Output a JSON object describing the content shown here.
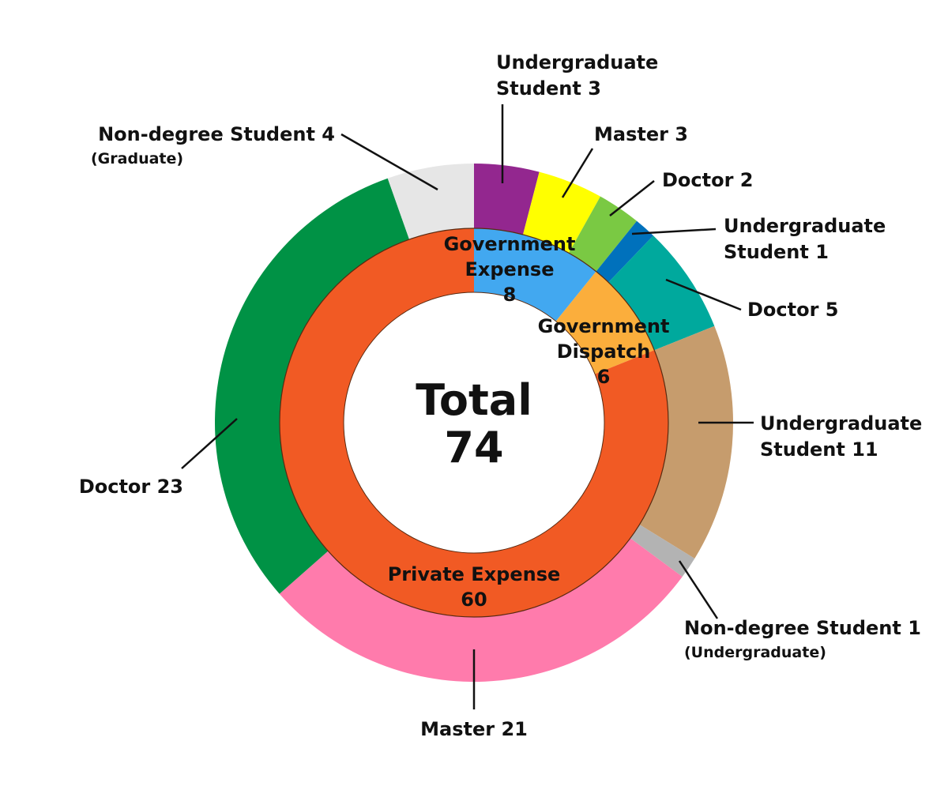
{
  "chart_data": {
    "type": "pie",
    "center_label": {
      "line1": "Total",
      "line2": "74"
    },
    "inner_ring": [
      {
        "label": [
          "Government",
          "Expense"
        ],
        "value": 8,
        "value_text": "8",
        "color": "#42a8f0"
      },
      {
        "label": [
          "Government",
          "Dispatch"
        ],
        "value": 6,
        "value_text": "6",
        "color": "#fbae3c"
      },
      {
        "label": [
          "Private Expense"
        ],
        "value": 60,
        "value_text": "60",
        "color": "#f15a24"
      }
    ],
    "outer_ring": [
      {
        "label": [
          "Undergraduate",
          "Student 3"
        ],
        "value": 3,
        "color": "#93278f"
      },
      {
        "label": [
          "Master 3"
        ],
        "value": 3,
        "color": "#ffff00"
      },
      {
        "label": [
          "Doctor 2"
        ],
        "value": 2,
        "color": "#7ac943"
      },
      {
        "label": [
          "Undergraduate",
          "Student 1"
        ],
        "value": 1,
        "color": "#0071bc"
      },
      {
        "label": [
          "Doctor 5"
        ],
        "value": 5,
        "color": "#00a99d"
      },
      {
        "label": [
          "Undergraduate",
          "Student 11"
        ],
        "value": 11,
        "color": "#c69c6d"
      },
      {
        "label": [
          "Non-degree Student 1"
        ],
        "sublabel": "(Undergraduate)",
        "value": 1,
        "color": "#b3b3b3"
      },
      {
        "label": [
          "Master 21"
        ],
        "value": 21,
        "color": "#ff7bac"
      },
      {
        "label": [
          "Doctor 23"
        ],
        "value": 23,
        "color": "#009245"
      },
      {
        "label": [
          "Non-degree Student 4"
        ],
        "sublabel": "(Graduate)",
        "value": 4,
        "color": "#e6e6e6"
      }
    ]
  }
}
